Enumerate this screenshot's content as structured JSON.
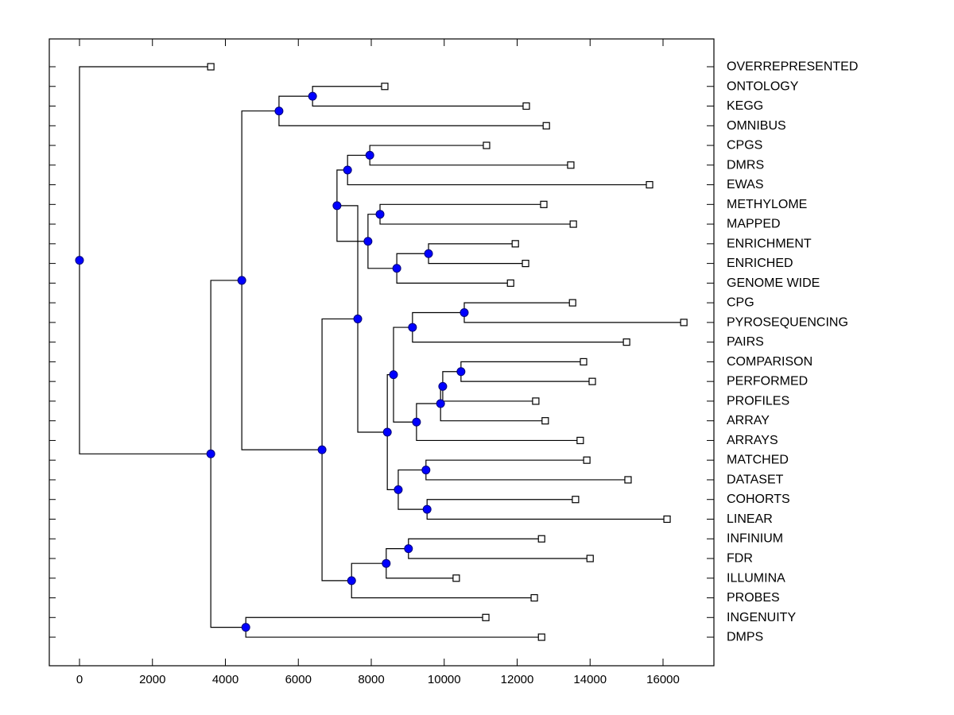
{
  "chart_data": {
    "type": "dendrogram",
    "title": "",
    "xlabel": "",
    "ylabel": "",
    "orientation": "horizontal",
    "xlim": [
      -800,
      17300
    ],
    "xticks": [
      0,
      2000,
      4000,
      6000,
      8000,
      10000,
      12000,
      14000,
      16000
    ],
    "xtick_labels": [
      "0",
      "2000",
      "4000",
      "6000",
      "8000",
      "10000",
      "12000",
      "14000",
      "16000"
    ],
    "grid": false,
    "colors": {
      "node": "#0000ff",
      "leaf_marker": "#ffffff",
      "line": "#000000"
    },
    "leaves": [
      {
        "label": "OVERREPRESENTED",
        "value": 3600
      },
      {
        "label": "ONTOLOGY",
        "value": 8370
      },
      {
        "label": "KEGG",
        "value": 12250
      },
      {
        "label": "OMNIBUS",
        "value": 12800
      },
      {
        "label": "CPGS",
        "value": 11160
      },
      {
        "label": "DMRS",
        "value": 13470
      },
      {
        "label": "EWAS",
        "value": 15630
      },
      {
        "label": "METHYLOME",
        "value": 12730
      },
      {
        "label": "MAPPED",
        "value": 13540
      },
      {
        "label": "ENRICHMENT",
        "value": 11950
      },
      {
        "label": "ENRICHED",
        "value": 12230
      },
      {
        "label": "GENOME WIDE",
        "value": 11820
      },
      {
        "label": "CPG",
        "value": 13520
      },
      {
        "label": "PYROSEQUENCING",
        "value": 16570
      },
      {
        "label": "PAIRS",
        "value": 15000
      },
      {
        "label": "COMPARISON",
        "value": 13820
      },
      {
        "label": "PERFORMED",
        "value": 14060
      },
      {
        "label": "PROFILES",
        "value": 12510
      },
      {
        "label": "ARRAY",
        "value": 12770
      },
      {
        "label": "ARRAYS",
        "value": 13730
      },
      {
        "label": "MATCHED",
        "value": 13910
      },
      {
        "label": "DATASET",
        "value": 15040
      },
      {
        "label": "COHORTS",
        "value": 13600
      },
      {
        "label": "LINEAR",
        "value": 16110
      },
      {
        "label": "INFINIUM",
        "value": 12670
      },
      {
        "label": "FDR",
        "value": 14000
      },
      {
        "label": "ILLUMINA",
        "value": 10330
      },
      {
        "label": "PROBES",
        "value": 12470
      },
      {
        "label": "INGENUITY",
        "value": 11140
      },
      {
        "label": "DMPS",
        "value": 12670
      }
    ],
    "nodes": [
      {
        "id": "n_root",
        "value": 0,
        "children": [
          "L0",
          "n_b"
        ]
      },
      {
        "id": "n_b",
        "value": 3600,
        "children": [
          "n_c",
          "n_ing"
        ]
      },
      {
        "id": "n_c",
        "value": 4450,
        "children": [
          "n_top",
          "n_d"
        ]
      },
      {
        "id": "n_top",
        "value": 5470,
        "children": [
          "n_ok",
          "L3"
        ]
      },
      {
        "id": "n_ok",
        "value": 6390,
        "children": [
          "L1",
          "L2"
        ]
      },
      {
        "id": "n_d",
        "value": 6650,
        "children": [
          "n_e",
          "n_ill"
        ]
      },
      {
        "id": "n_e",
        "value": 7060,
        "children": [
          "n_cde",
          "n_mme"
        ]
      },
      {
        "id": "n_cde",
        "value": 7350,
        "children": [
          "n_cd",
          "L6"
        ]
      },
      {
        "id": "n_cd",
        "value": 7960,
        "children": [
          "L4",
          "L5"
        ]
      },
      {
        "id": "n_mme",
        "value": 7910,
        "children": [
          "n_mm",
          "n_eeg"
        ]
      },
      {
        "id": "n_mm",
        "value": 8240,
        "children": [
          "L7",
          "L8"
        ]
      },
      {
        "id": "n_eeg",
        "value": 8700,
        "children": [
          "n_ee",
          "L11"
        ]
      },
      {
        "id": "n_ee",
        "value": 9570,
        "children": [
          "L9",
          "L10"
        ]
      },
      {
        "id": "n_f",
        "value": 7630,
        "children": [
          "n_e",
          "n_g"
        ]
      },
      {
        "id": "n_g",
        "value": 8440,
        "children": [
          "n_h",
          "n_mdcl"
        ]
      },
      {
        "id": "n_h",
        "value": 8610,
        "children": [
          "n_cpp",
          "n_arrs"
        ]
      },
      {
        "id": "n_cpp",
        "value": 9130,
        "children": [
          "n_cp",
          "L14"
        ]
      },
      {
        "id": "n_cp",
        "value": 10550,
        "children": [
          "L12",
          "L13"
        ]
      },
      {
        "id": "n_arrs",
        "value": 9240,
        "children": [
          "n_arr",
          "L19"
        ]
      },
      {
        "id": "n_arr",
        "value": 9900,
        "children": [
          "n_prof",
          "L18"
        ]
      },
      {
        "id": "n_prof",
        "value": 9960,
        "children": [
          "n_comp",
          "L17"
        ]
      },
      {
        "id": "n_comp",
        "value": 10460,
        "children": [
          "L15",
          "L16"
        ]
      },
      {
        "id": "n_mdcl",
        "value": 8740,
        "children": [
          "n_md",
          "n_cl"
        ]
      },
      {
        "id": "n_md",
        "value": 9500,
        "children": [
          "L20",
          "L21"
        ]
      },
      {
        "id": "n_cl",
        "value": 9530,
        "children": [
          "L22",
          "L23"
        ]
      },
      {
        "id": "n_ill",
        "value": 7460,
        "children": [
          "n_ifi",
          "L27"
        ]
      },
      {
        "id": "n_ifi",
        "value": 8410,
        "children": [
          "n_if",
          "L26"
        ]
      },
      {
        "id": "n_if",
        "value": 9020,
        "children": [
          "L24",
          "L25"
        ]
      },
      {
        "id": "n_ing",
        "value": 4560,
        "children": [
          "L28",
          "L29"
        ]
      }
    ]
  }
}
